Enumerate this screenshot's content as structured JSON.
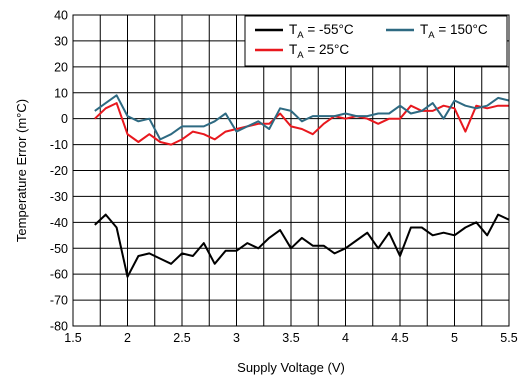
{
  "chart_data": {
    "type": "line",
    "title": "",
    "xlabel": "Supply Voltage (V)",
    "ylabel": "Temperature Error (m°C)",
    "xlim": [
      1.5,
      5.5
    ],
    "ylim": [
      -80,
      40
    ],
    "xticks": [
      "1.5",
      "2",
      "2.5",
      "3",
      "3.5",
      "4",
      "4.5",
      "5",
      "5.5"
    ],
    "yticks": [
      "40",
      "30",
      "20",
      "10",
      "0",
      "-10",
      "-20",
      "-30",
      "-40",
      "-50",
      "-60",
      "-70",
      "-80"
    ],
    "grid": true,
    "legend_position": "top-right",
    "series": [
      {
        "name_main": "T",
        "name_sub": "A",
        "name_rest": " = -55°C",
        "color": "#000000",
        "x": [
          1.7,
          1.8,
          1.9,
          2.0,
          2.1,
          2.2,
          2.3,
          2.4,
          2.5,
          2.6,
          2.7,
          2.8,
          2.9,
          3.0,
          3.1,
          3.2,
          3.3,
          3.4,
          3.5,
          3.6,
          3.7,
          3.8,
          3.9,
          4.0,
          4.1,
          4.2,
          4.3,
          4.4,
          4.5,
          4.6,
          4.7,
          4.8,
          4.9,
          5.0,
          5.1,
          5.2,
          5.3,
          5.4,
          5.5
        ],
        "y": [
          -41,
          -37,
          -42,
          -61,
          -53,
          -52,
          -54,
          -56,
          -52,
          -53,
          -48,
          -56,
          -51,
          -51,
          -48,
          -50,
          -46,
          -43,
          -50,
          -46,
          -49,
          -49,
          -52,
          -50,
          -47,
          -44,
          -50,
          -44,
          -53,
          -42,
          -42,
          -45,
          -44,
          -45,
          -42,
          -40,
          -45,
          -37,
          -39
        ]
      },
      {
        "name_main": "T",
        "name_sub": "A",
        "name_rest": " = 25°C",
        "color": "#e8181e",
        "x": [
          1.7,
          1.8,
          1.9,
          2.0,
          2.1,
          2.2,
          2.3,
          2.4,
          2.5,
          2.6,
          2.7,
          2.8,
          2.9,
          3.0,
          3.1,
          3.2,
          3.3,
          3.4,
          3.5,
          3.6,
          3.7,
          3.8,
          3.9,
          4.0,
          4.1,
          4.2,
          4.3,
          4.4,
          4.5,
          4.6,
          4.7,
          4.8,
          4.9,
          5.0,
          5.1,
          5.2,
          5.3,
          5.4,
          5.5
        ],
        "y": [
          0,
          4,
          6,
          -6,
          -9,
          -6,
          -9,
          -10,
          -8,
          -5,
          -6,
          -8,
          -5,
          -4,
          -3,
          -2,
          -2,
          2,
          -3,
          -4,
          -6,
          -2,
          1,
          0,
          1,
          0,
          -2,
          0,
          0,
          5,
          3,
          3,
          5,
          4,
          -5,
          5,
          4,
          5,
          5
        ]
      },
      {
        "name_main": "T",
        "name_sub": "A",
        "name_rest": " = 150°C",
        "color": "#2e6a82",
        "x": [
          1.7,
          1.8,
          1.9,
          2.0,
          2.1,
          2.2,
          2.3,
          2.4,
          2.5,
          2.6,
          2.7,
          2.8,
          2.9,
          3.0,
          3.1,
          3.2,
          3.3,
          3.4,
          3.5,
          3.6,
          3.7,
          3.8,
          3.9,
          4.0,
          4.1,
          4.2,
          4.3,
          4.4,
          4.5,
          4.6,
          4.7,
          4.8,
          4.9,
          5.0,
          5.1,
          5.2,
          5.3,
          5.4,
          5.5
        ],
        "y": [
          3,
          6,
          9,
          1,
          -1,
          0,
          -8,
          -6,
          -3,
          -3,
          -3,
          -1,
          2,
          -5,
          -3,
          -1,
          -4,
          4,
          3,
          -1,
          1,
          1,
          1,
          2,
          1,
          1,
          2,
          2,
          5,
          2,
          3,
          6,
          0,
          7,
          5,
          4,
          5,
          8,
          7
        ]
      }
    ]
  }
}
